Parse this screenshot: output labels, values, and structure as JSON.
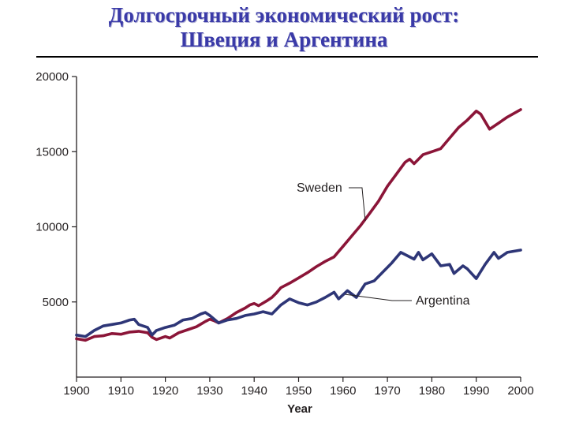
{
  "slide": {
    "title_line1": "Долгосрочный экономический рост:",
    "title_line2": "Швеция и Аргентина"
  },
  "chart_data": {
    "type": "line",
    "title": "",
    "xlabel": "Year",
    "ylabel": "",
    "xlim": [
      1900,
      2000
    ],
    "ylim": [
      0,
      20000
    ],
    "x_ticks": [
      "1900",
      "1910",
      "1920",
      "1930",
      "1940",
      "1950",
      "1960",
      "1970",
      "1980",
      "1990",
      "2000"
    ],
    "y_ticks": [
      "5000",
      "10000",
      "15000",
      "20000"
    ],
    "grid": false,
    "legend": "inline-labels",
    "colors": {
      "Sweden": "#8b1538",
      "Argentina": "#2e3677"
    },
    "series": [
      {
        "name": "Sweden",
        "points": [
          [
            1900,
            2550
          ],
          [
            1902,
            2450
          ],
          [
            1904,
            2700
          ],
          [
            1906,
            2750
          ],
          [
            1908,
            2900
          ],
          [
            1910,
            2850
          ],
          [
            1912,
            3000
          ],
          [
            1914,
            3050
          ],
          [
            1916,
            2950
          ],
          [
            1917,
            2650
          ],
          [
            1918,
            2500
          ],
          [
            1920,
            2700
          ],
          [
            1921,
            2600
          ],
          [
            1923,
            2950
          ],
          [
            1925,
            3150
          ],
          [
            1927,
            3350
          ],
          [
            1929,
            3700
          ],
          [
            1930,
            3850
          ],
          [
            1931,
            3750
          ],
          [
            1932,
            3600
          ],
          [
            1934,
            3900
          ],
          [
            1936,
            4300
          ],
          [
            1938,
            4600
          ],
          [
            1939,
            4800
          ],
          [
            1940,
            4900
          ],
          [
            1941,
            4750
          ],
          [
            1943,
            5100
          ],
          [
            1944,
            5300
          ],
          [
            1945,
            5600
          ],
          [
            1946,
            5950
          ],
          [
            1948,
            6250
          ],
          [
            1950,
            6600
          ],
          [
            1952,
            6950
          ],
          [
            1954,
            7350
          ],
          [
            1956,
            7700
          ],
          [
            1958,
            8000
          ],
          [
            1960,
            8700
          ],
          [
            1962,
            9400
          ],
          [
            1964,
            10100
          ],
          [
            1966,
            10900
          ],
          [
            1968,
            11700
          ],
          [
            1970,
            12700
          ],
          [
            1972,
            13500
          ],
          [
            1974,
            14300
          ],
          [
            1975,
            14500
          ],
          [
            1976,
            14200
          ],
          [
            1978,
            14800
          ],
          [
            1980,
            15000
          ],
          [
            1982,
            15200
          ],
          [
            1984,
            15900
          ],
          [
            1986,
            16600
          ],
          [
            1988,
            17100
          ],
          [
            1990,
            17700
          ],
          [
            1991,
            17500
          ],
          [
            1993,
            16500
          ],
          [
            1995,
            16900
          ],
          [
            1997,
            17300
          ],
          [
            2000,
            17800
          ]
        ]
      },
      {
        "name": "Argentina",
        "points": [
          [
            1900,
            2800
          ],
          [
            1902,
            2700
          ],
          [
            1904,
            3100
          ],
          [
            1906,
            3400
          ],
          [
            1908,
            3500
          ],
          [
            1910,
            3600
          ],
          [
            1912,
            3800
          ],
          [
            1913,
            3850
          ],
          [
            1914,
            3500
          ],
          [
            1916,
            3300
          ],
          [
            1917,
            2800
          ],
          [
            1918,
            3100
          ],
          [
            1920,
            3300
          ],
          [
            1922,
            3450
          ],
          [
            1924,
            3800
          ],
          [
            1926,
            3900
          ],
          [
            1928,
            4200
          ],
          [
            1929,
            4300
          ],
          [
            1930,
            4100
          ],
          [
            1932,
            3600
          ],
          [
            1934,
            3800
          ],
          [
            1936,
            3900
          ],
          [
            1938,
            4100
          ],
          [
            1940,
            4200
          ],
          [
            1942,
            4350
          ],
          [
            1944,
            4200
          ],
          [
            1946,
            4800
          ],
          [
            1948,
            5200
          ],
          [
            1950,
            4950
          ],
          [
            1952,
            4800
          ],
          [
            1954,
            5000
          ],
          [
            1956,
            5300
          ],
          [
            1958,
            5650
          ],
          [
            1959,
            5200
          ],
          [
            1961,
            5750
          ],
          [
            1963,
            5300
          ],
          [
            1965,
            6200
          ],
          [
            1967,
            6400
          ],
          [
            1969,
            7000
          ],
          [
            1971,
            7600
          ],
          [
            1973,
            8300
          ],
          [
            1975,
            8000
          ],
          [
            1976,
            7850
          ],
          [
            1977,
            8300
          ],
          [
            1978,
            7800
          ],
          [
            1980,
            8200
          ],
          [
            1982,
            7400
          ],
          [
            1984,
            7500
          ],
          [
            1985,
            6900
          ],
          [
            1987,
            7400
          ],
          [
            1988,
            7200
          ],
          [
            1990,
            6550
          ],
          [
            1992,
            7500
          ],
          [
            1994,
            8300
          ],
          [
            1995,
            7900
          ],
          [
            1997,
            8300
          ],
          [
            2000,
            8450
          ]
        ]
      }
    ],
    "series_labels": {
      "Sweden": "Sweden",
      "Argentina": "Argentina"
    }
  }
}
